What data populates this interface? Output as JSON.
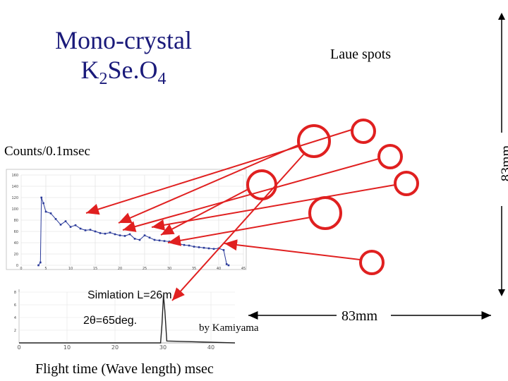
{
  "title": {
    "line1": "Mono-crystal",
    "line2_main": "K",
    "line2_sub1": "2",
    "line2_mid": "Se.O",
    "line2_sub2": "4"
  },
  "labels": {
    "laue_spots": "Laue spots",
    "counts": "Counts/0.1msec",
    "simulation": "Simlation L=26m",
    "angle": "2θ=65deg.",
    "credit": "by Kamiyama",
    "x_axis": "Flight time (Wave length)   msec",
    "dim_horizontal": "83mm",
    "dim_vertical": "83mm"
  },
  "colors": {
    "title": "#1a1a7a",
    "arrow": "#e02020",
    "data": "#2a3a9a",
    "sim": "#222222"
  },
  "chart_data": [
    {
      "type": "line",
      "title": "Counts/0.1msec",
      "x_ticks": [
        "0",
        "5",
        "10",
        "15",
        "20",
        "25",
        "30",
        "35",
        "40",
        "45"
      ],
      "y_ticks": [
        "0",
        "20",
        "40",
        "60",
        "80",
        "100",
        "120",
        "140",
        "160"
      ],
      "xlim": [
        0,
        45
      ],
      "ylim": [
        0,
        160
      ],
      "x": [
        3.5,
        3.9,
        4.1,
        4.5,
        5,
        6,
        7,
        8,
        9,
        10,
        11,
        12,
        13,
        14,
        15,
        16,
        17,
        18,
        19,
        20,
        21,
        22,
        23,
        24,
        25,
        26,
        27,
        28,
        29,
        30,
        31,
        32,
        33,
        34,
        35,
        36,
        37,
        38,
        39,
        40,
        41,
        41.6,
        42
      ],
      "values": [
        0,
        5,
        120,
        110,
        95,
        92,
        82,
        72,
        78,
        68,
        71,
        65,
        62,
        63,
        60,
        57,
        56,
        58,
        55,
        53,
        52,
        55,
        47,
        45,
        53,
        49,
        45,
        44,
        43,
        42,
        39,
        38,
        36,
        35,
        33,
        32,
        31,
        30,
        29,
        30,
        27,
        2,
        0
      ]
    },
    {
      "type": "line",
      "title": "Simlation L=26m",
      "x_ticks": [
        "0",
        "10",
        "20",
        "30",
        "40"
      ],
      "y_ticks": [
        "2",
        "4",
        "6",
        "8"
      ],
      "xlim": [
        0,
        45
      ],
      "ylim": [
        0,
        8
      ],
      "x": [
        0,
        29.5,
        29.8,
        30.1,
        30.4,
        30.8,
        45
      ],
      "values": [
        0,
        0,
        3,
        7.5,
        5,
        0.3,
        0
      ]
    }
  ]
}
